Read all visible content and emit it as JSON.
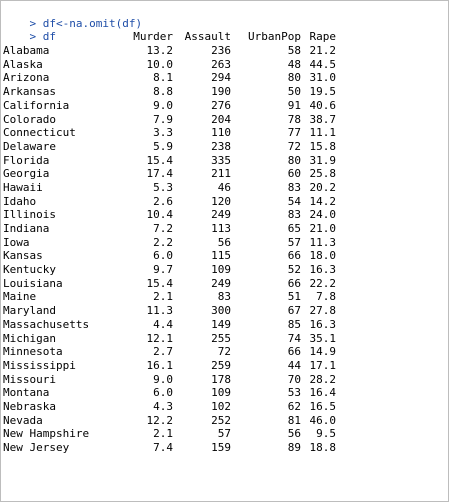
{
  "console": {
    "commands": [
      {
        "prompt": ">",
        "code": "df<-na.omit(df)"
      },
      {
        "prompt": ">",
        "code": "df"
      }
    ],
    "columns": [
      "",
      "Murder",
      "Assault",
      "UrbanPop",
      "Rape"
    ],
    "rows": [
      [
        "Alabama",
        "13.2",
        "236",
        "58",
        "21.2"
      ],
      [
        "Alaska",
        "10.0",
        "263",
        "48",
        "44.5"
      ],
      [
        "Arizona",
        "8.1",
        "294",
        "80",
        "31.0"
      ],
      [
        "Arkansas",
        "8.8",
        "190",
        "50",
        "19.5"
      ],
      [
        "California",
        "9.0",
        "276",
        "91",
        "40.6"
      ],
      [
        "Colorado",
        "7.9",
        "204",
        "78",
        "38.7"
      ],
      [
        "Connecticut",
        "3.3",
        "110",
        "77",
        "11.1"
      ],
      [
        "Delaware",
        "5.9",
        "238",
        "72",
        "15.8"
      ],
      [
        "Florida",
        "15.4",
        "335",
        "80",
        "31.9"
      ],
      [
        "Georgia",
        "17.4",
        "211",
        "60",
        "25.8"
      ],
      [
        "Hawaii",
        "5.3",
        "46",
        "83",
        "20.2"
      ],
      [
        "Idaho",
        "2.6",
        "120",
        "54",
        "14.2"
      ],
      [
        "Illinois",
        "10.4",
        "249",
        "83",
        "24.0"
      ],
      [
        "Indiana",
        "7.2",
        "113",
        "65",
        "21.0"
      ],
      [
        "Iowa",
        "2.2",
        "56",
        "57",
        "11.3"
      ],
      [
        "Kansas",
        "6.0",
        "115",
        "66",
        "18.0"
      ],
      [
        "Kentucky",
        "9.7",
        "109",
        "52",
        "16.3"
      ],
      [
        "Louisiana",
        "15.4",
        "249",
        "66",
        "22.2"
      ],
      [
        "Maine",
        "2.1",
        "83",
        "51",
        "7.8"
      ],
      [
        "Maryland",
        "11.3",
        "300",
        "67",
        "27.8"
      ],
      [
        "Massachusetts",
        "4.4",
        "149",
        "85",
        "16.3"
      ],
      [
        "Michigan",
        "12.1",
        "255",
        "74",
        "35.1"
      ],
      [
        "Minnesota",
        "2.7",
        "72",
        "66",
        "14.9"
      ],
      [
        "Mississippi",
        "16.1",
        "259",
        "44",
        "17.1"
      ],
      [
        "Missouri",
        "9.0",
        "178",
        "70",
        "28.2"
      ],
      [
        "Montana",
        "6.0",
        "109",
        "53",
        "16.4"
      ],
      [
        "Nebraska",
        "4.3",
        "102",
        "62",
        "16.5"
      ],
      [
        "Nevada",
        "12.2",
        "252",
        "81",
        "46.0"
      ],
      [
        "New Hampshire",
        "2.1",
        "57",
        "56",
        "9.5"
      ],
      [
        "New Jersey",
        "7.4",
        "159",
        "89",
        "18.8"
      ]
    ],
    "colors": {
      "command_text": "#1f4ea8",
      "output_text": "#000000",
      "background": "#ffffff",
      "border": "#bdbdbd"
    }
  }
}
